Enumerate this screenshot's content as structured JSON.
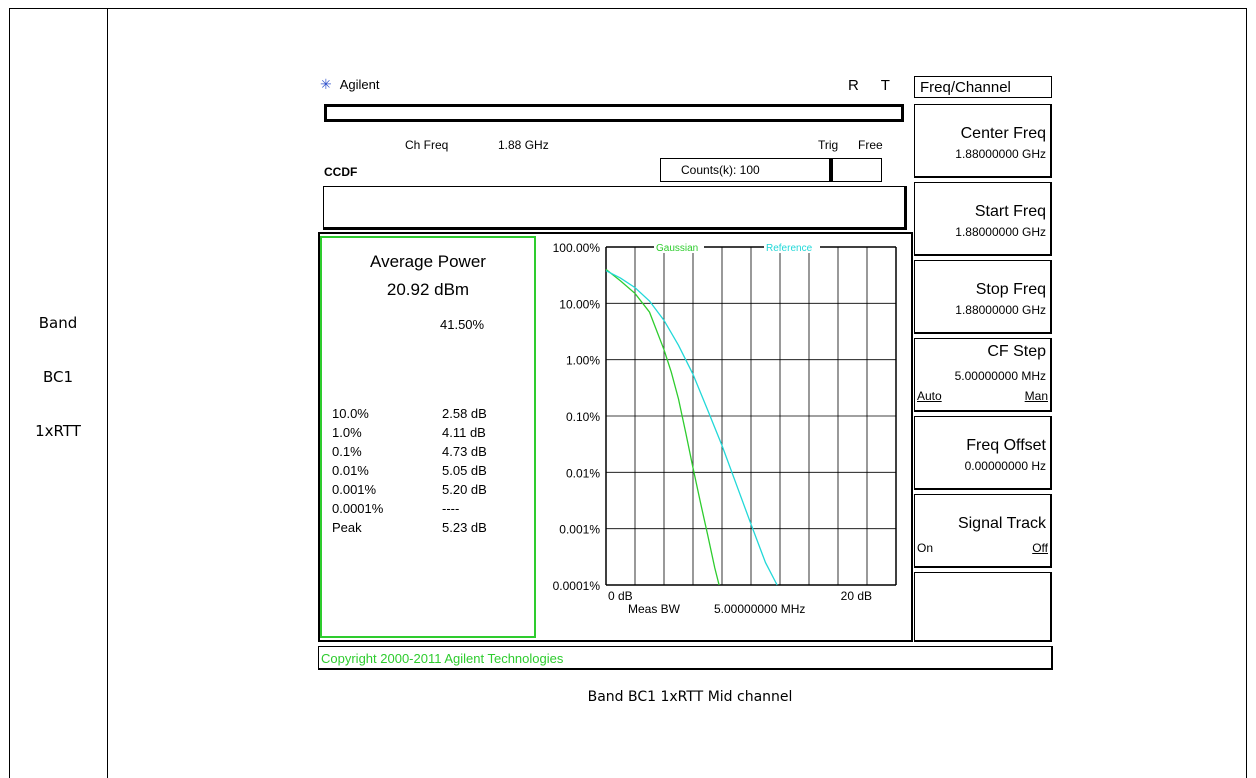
{
  "band_cell": [
    "Band",
    "BC1",
    "1xRTT"
  ],
  "analyzer": {
    "brand": "Agilent",
    "indicators": [
      "R",
      "T"
    ],
    "ch_freq_label": "Ch Freq",
    "ch_freq_value": "1.88 GHz",
    "trig_label": "Trig",
    "trig_value": "Free",
    "mode": "CCDF",
    "counts": "Counts(k): 100",
    "copyright": "Copyright 2000-2011 Agilent Technologies"
  },
  "results": {
    "title": "Average Power",
    "value": "20.92 dBm",
    "percent": "41.50%",
    "rows": [
      {
        "label": "10.0%",
        "value": "2.58 dB"
      },
      {
        "label": "1.0%",
        "value": "4.11 dB"
      },
      {
        "label": "0.1%",
        "value": "4.73 dB"
      },
      {
        "label": "0.01%",
        "value": "5.05 dB"
      },
      {
        "label": "0.001%",
        "value": "5.20 dB"
      },
      {
        "label": "0.0001%",
        "value": "----"
      },
      {
        "label": "Peak",
        "value": "5.23 dB"
      }
    ]
  },
  "softkeys": {
    "menu_title": "Freq/Channel",
    "keys": [
      {
        "title": "Center Freq",
        "value": "1.88000000 GHz"
      },
      {
        "title": "Start Freq",
        "value": "1.88000000 GHz"
      },
      {
        "title": "Stop Freq",
        "value": "1.88000000 GHz"
      },
      {
        "title": "CF Step",
        "value": "5.00000000 MHz",
        "opt_left": "Auto",
        "opt_right": "Man"
      },
      {
        "title": "Freq Offset",
        "value": "0.00000000  Hz"
      },
      {
        "title": "Signal Track",
        "value": "",
        "opt_left": "On",
        "opt_right": "Off"
      }
    ]
  },
  "chart_data": {
    "type": "line",
    "y_scale": "log",
    "ylim": [
      0.0001,
      100
    ],
    "xlim": [
      0,
      20
    ],
    "y_tick_labels": [
      "100.00%",
      "10.00%",
      "1.00%",
      "0.10%",
      "0.01%",
      "0.001%",
      "0.0001%"
    ],
    "x_tick_labels": [
      "0 dB",
      "20 dB"
    ],
    "x_footer": [
      "Meas BW",
      "5.00000000 MHz"
    ],
    "grid": true,
    "series": [
      {
        "name": "Gaussian",
        "color": "#2ecc2e",
        "x": [
          0,
          1,
          2,
          3,
          4,
          4.5,
          5,
          5.5,
          6,
          6.5,
          7,
          7.5,
          7.8
        ],
        "y": [
          40,
          25,
          15,
          7,
          1.5,
          0.6,
          0.2,
          0.05,
          0.012,
          0.003,
          0.0008,
          0.0002,
          0.0001
        ]
      },
      {
        "name": "Reference",
        "color": "#22d8d8",
        "x": [
          0,
          1,
          2,
          3,
          4,
          5,
          6,
          7,
          8,
          9,
          10,
          11,
          11.8
        ],
        "y": [
          38,
          28,
          19,
          11,
          5,
          1.8,
          0.55,
          0.13,
          0.03,
          0.006,
          0.0012,
          0.00025,
          0.0001
        ]
      }
    ]
  },
  "caption": "Band BC1 1xRTT  Mid channel"
}
